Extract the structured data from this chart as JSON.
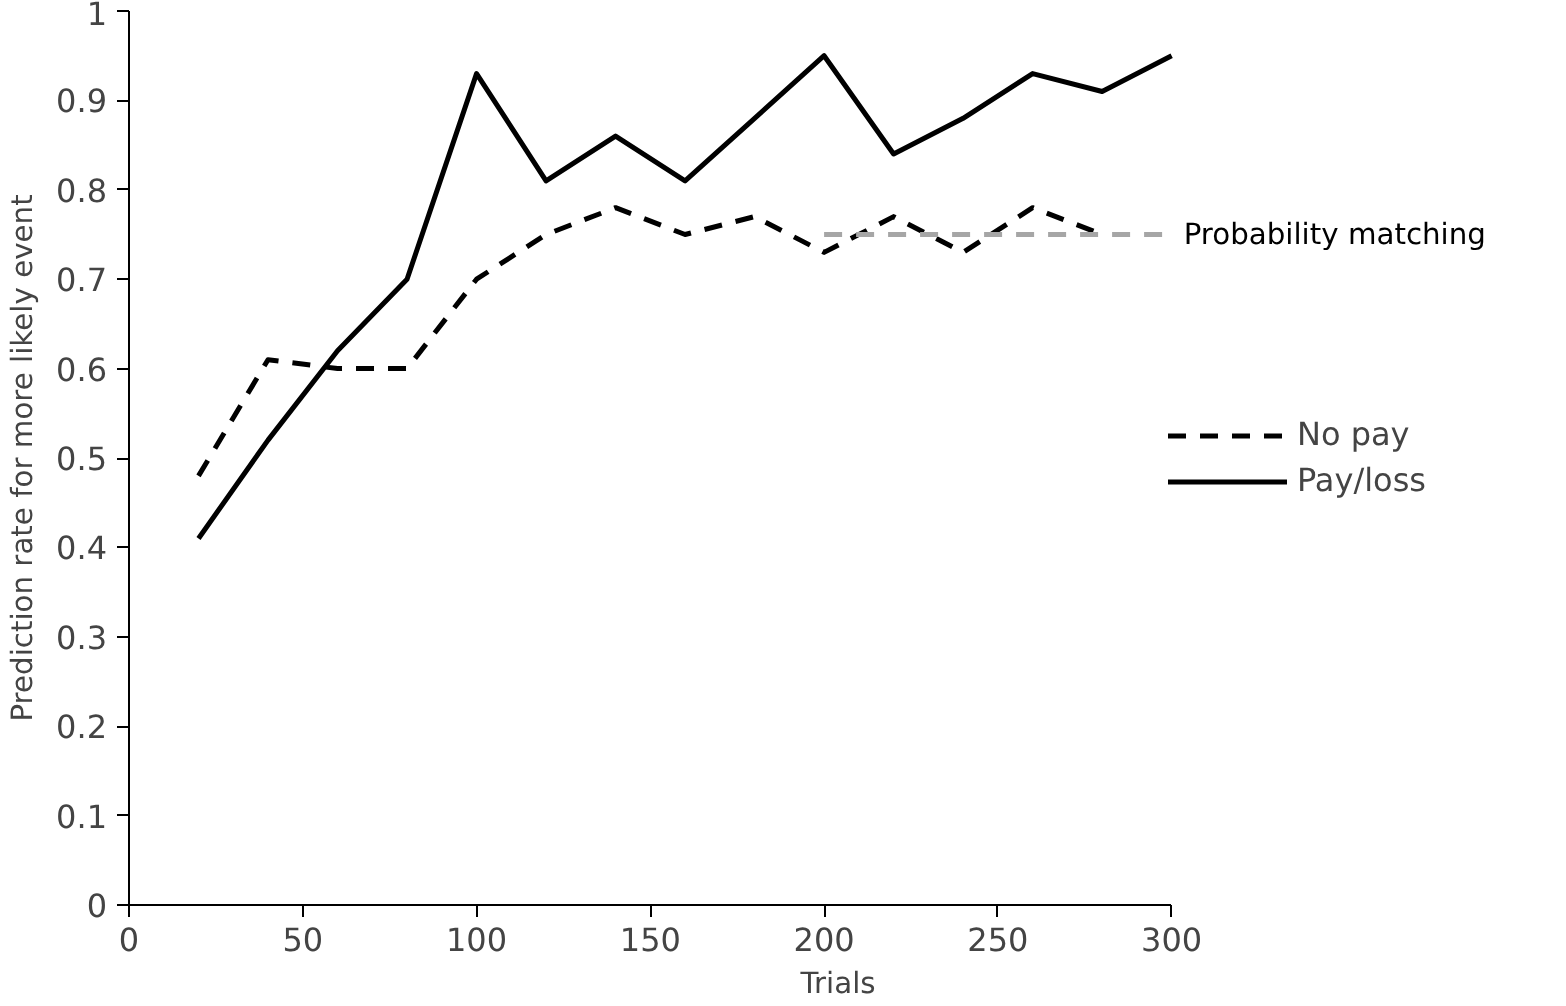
{
  "chart_data": {
    "type": "line",
    "xlabel": "Trials",
    "ylabel": "Prediction rate for more likely event",
    "xlim": [
      0,
      300
    ],
    "xticks": [
      0,
      50,
      100,
      150,
      200,
      250,
      300
    ],
    "ylim": [
      0,
      1
    ],
    "yticks": [
      0,
      0.1,
      0.2,
      0.3,
      0.4,
      0.5,
      0.6,
      0.7,
      0.8,
      0.9,
      1
    ],
    "grid": false,
    "legend": "right",
    "marker": "none",
    "series": [
      {
        "name": "No pay",
        "color": "#000000",
        "line_style": "dashed",
        "x": [
          20,
          40,
          60,
          80,
          100,
          120,
          140,
          160,
          180,
          200,
          220,
          240,
          260,
          280
        ],
        "values": [
          0.48,
          0.61,
          0.6,
          0.6,
          0.7,
          0.75,
          0.78,
          0.75,
          0.77,
          0.73,
          0.77,
          0.73,
          0.78,
          0.75
        ]
      },
      {
        "name": "Pay/loss",
        "color": "#000000",
        "line_style": "solid",
        "x": [
          20,
          40,
          60,
          80,
          100,
          120,
          140,
          160,
          180,
          200,
          220,
          240,
          260,
          280,
          300
        ],
        "values": [
          0.41,
          0.52,
          0.62,
          0.7,
          0.93,
          0.81,
          0.86,
          0.81,
          0.88,
          0.95,
          0.84,
          0.88,
          0.93,
          0.91,
          0.95
        ]
      },
      {
        "color": "#a6a6a6",
        "line_style": "dashed",
        "x": [
          200,
          300
        ],
        "values": [
          0.75,
          0.75
        ]
      }
    ],
    "annotations": [
      {
        "text": "Probability matching",
        "x": 300,
        "y": 0.75
      }
    ]
  }
}
